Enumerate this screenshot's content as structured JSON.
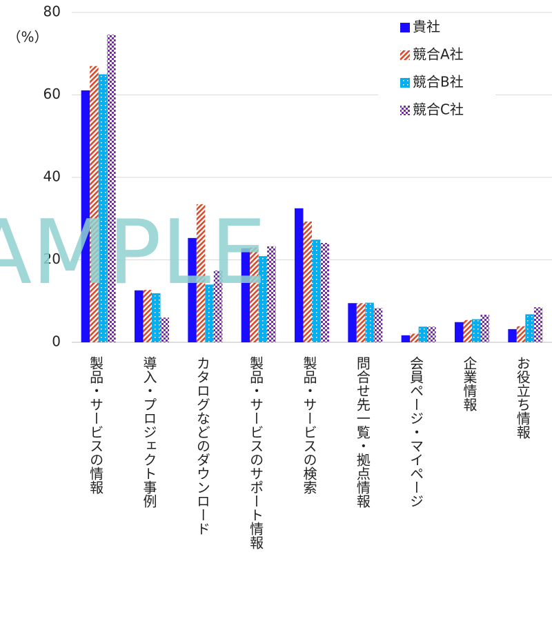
{
  "chart_data": {
    "type": "bar",
    "y_label": "（%）",
    "watermark": "SAMPLE",
    "categories": [
      "製品・サービスの情報",
      "導入・プロジェクト事例",
      "カタログなどのダウンロード",
      "製品・サービスのサポート情報",
      "製品・サービスの検索",
      "問合せ先一覧・拠点情報",
      "会員ページ・マイページ",
      "企業情報",
      "お役立ち情報"
    ],
    "series": [
      {
        "name": "貴社",
        "color": "#1a0dff",
        "pattern": "solid",
        "values": [
          61.1,
          12.6,
          25.3,
          22.8,
          32.5,
          9.5,
          1.7,
          4.9,
          3.2
        ]
      },
      {
        "name": "競合A社",
        "color": "#d9492a",
        "pattern": "diagonal",
        "values": [
          67.0,
          12.7,
          33.5,
          23.0,
          29.3,
          9.5,
          2.1,
          5.4,
          3.9
        ]
      },
      {
        "name": "競合B社",
        "color": "#00b0f0",
        "pattern": "dots",
        "values": [
          65.0,
          11.9,
          14.0,
          20.9,
          24.9,
          9.6,
          3.8,
          5.6,
          6.8
        ]
      },
      {
        "name": "競合C社",
        "color": "#7030a0",
        "pattern": "checker",
        "values": [
          74.6,
          6.0,
          17.4,
          23.3,
          24.1,
          8.3,
          3.8,
          6.7,
          8.5
        ]
      }
    ],
    "ylim": [
      0,
      80
    ],
    "yticks": [
      0,
      20,
      40,
      60,
      80
    ],
    "grid": true,
    "legend": "upper right"
  }
}
